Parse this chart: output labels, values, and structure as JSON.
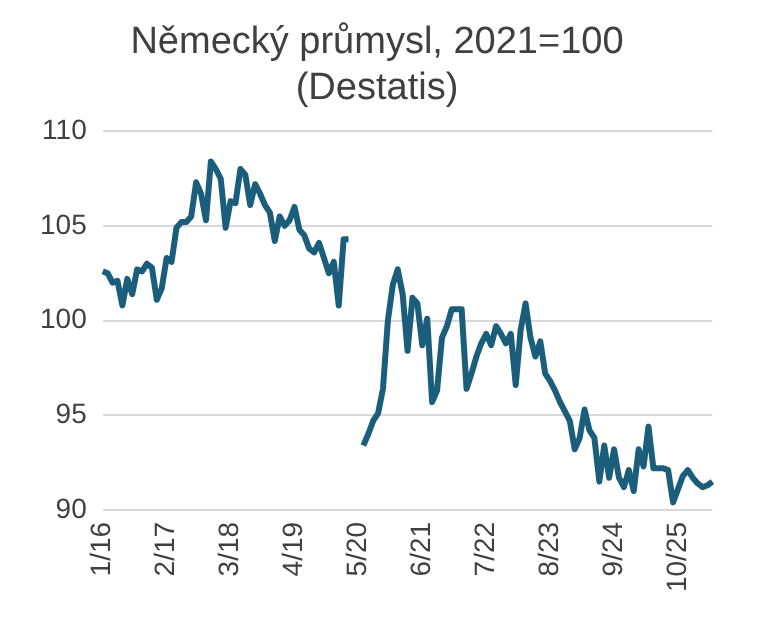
{
  "chart_data": {
    "type": "line",
    "title": "Německý průmysl, 2021=100",
    "subtitle": "(Destatis)",
    "categories": [
      "1/16",
      null,
      null,
      null,
      null,
      null,
      null,
      null,
      null,
      null,
      null,
      null,
      null,
      "2/17",
      null,
      null,
      null,
      null,
      null,
      null,
      null,
      null,
      null,
      null,
      null,
      null,
      "3/18",
      null,
      null,
      null,
      null,
      null,
      null,
      null,
      null,
      null,
      null,
      null,
      null,
      "4/19",
      null,
      null,
      null,
      null,
      null,
      null,
      null,
      null,
      null,
      null,
      null,
      null,
      "5/20",
      null,
      null,
      null,
      null,
      null,
      null,
      null,
      null,
      null,
      null,
      null,
      null,
      "6/21",
      null,
      null,
      null,
      null,
      null,
      null,
      null,
      null,
      null,
      null,
      null,
      null,
      "7/22",
      null,
      null,
      null,
      null,
      null,
      null,
      null,
      null,
      null,
      null,
      null,
      null,
      "8/23",
      null,
      null,
      null,
      null,
      null,
      null,
      null,
      null,
      null,
      null,
      null,
      null,
      "9/24",
      null,
      null,
      null,
      null,
      null,
      null,
      null,
      null,
      null,
      null,
      null,
      null,
      "10/25",
      null,
      null,
      null,
      null,
      null,
      null,
      null
    ],
    "series": [
      {
        "color": "#1b5e7b",
        "values": [
          102.6,
          102.5,
          102.0,
          102.1,
          100.8,
          102.2,
          101.4,
          102.7,
          102.6,
          103.0,
          102.8,
          101.1,
          101.7,
          103.3,
          103.1,
          104.9,
          105.2,
          105.2,
          105.5,
          107.3,
          106.7,
          105.3,
          108.4,
          108.0,
          107.5,
          104.9,
          106.3,
          106.2,
          108.0,
          107.7,
          106.1,
          107.2,
          106.7,
          106.1,
          105.7,
          104.2,
          105.5,
          105.0,
          105.3,
          106.0,
          104.8,
          104.5,
          103.8,
          103.6,
          104.1,
          103.3,
          102.5,
          103.1,
          100.8,
          104.3,
          104.3,
          null,
          null,
          93.4,
          94.0,
          94.7,
          95.1,
          96.4,
          100.0,
          101.9,
          102.7,
          101.4,
          98.4,
          101.2,
          100.9,
          98.7,
          100.1,
          95.7,
          96.3,
          99.1,
          99.7,
          100.6,
          100.6,
          100.6,
          96.4,
          97.2,
          98.1,
          98.8,
          99.3,
          98.7,
          99.7,
          99.3,
          98.8,
          99.3,
          96.6,
          99.5,
          100.9,
          99.1,
          98.1,
          98.9,
          97.2,
          96.8,
          96.3,
          95.7,
          95.2,
          94.7,
          93.2,
          93.8,
          95.3,
          94.2,
          93.8,
          91.5,
          93.4,
          91.7,
          93.2,
          91.7,
          91.2,
          92.1,
          91.0,
          93.2,
          92.3,
          94.4,
          92.2,
          92.2,
          92.2,
          92.1,
          90.4,
          91.1,
          91.8,
          92.1,
          91.7,
          91.4,
          91.2,
          91.3,
          91.5
        ]
      }
    ],
    "ylim": [
      90,
      110
    ],
    "yticks": [
      90,
      95,
      100,
      105,
      110
    ],
    "grid": "y",
    "marker": "none",
    "line_style": "solid"
  }
}
